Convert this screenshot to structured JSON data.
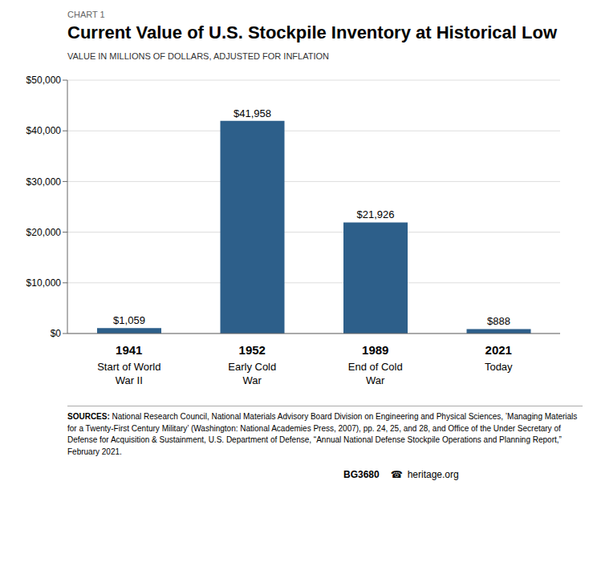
{
  "chart_data": {
    "type": "bar",
    "title": "Current Value of U.S. Stockpile Inventory at Historical Low",
    "subtitle": "VALUE IN MILLIONS OF DOLLARS, ADJUSTED FOR INFLATION",
    "categories": [
      "1941",
      "1952",
      "1989",
      "2021"
    ],
    "sublabels": [
      "Start of World\nWar II",
      "Early Cold\nWar",
      "End of Cold\nWar",
      "Today"
    ],
    "values": [
      1059,
      41958,
      21926,
      888
    ],
    "value_labels": [
      "$1,059",
      "$41,958",
      "$21,926",
      "$888"
    ],
    "data_labels": true,
    "color": "#2D5F8A",
    "ylim": [
      0,
      50000
    ],
    "yticks": [
      {
        "value": 0,
        "label": "$0"
      },
      {
        "value": 10000,
        "label": "$10,000"
      },
      {
        "value": 20000,
        "label": "$20,000"
      },
      {
        "value": 30000,
        "label": "$30,000"
      },
      {
        "value": 40000,
        "label": "$40,000"
      },
      {
        "value": 50000,
        "label": "$50,000"
      }
    ],
    "grid": true,
    "annotations": [
      "CHART 1",
      "SOURCES:",
      "National Research Council, National Materials Advisory Board Division on Engineering and Physical Sciences, ’Managing Materials for a Twenty-First Century Military’ (Washington: National Academies Press, 2007), pp. 24, 25, and 28, and Office of the Under Secretary of Defense for Acquisition & Sustainment, U.S. Department of Defense, “Annual National Defense Stockpile Operations and Planning Report,” February 2021.",
      "BG3680",
      "☎",
      "heritage.org"
    ]
  }
}
